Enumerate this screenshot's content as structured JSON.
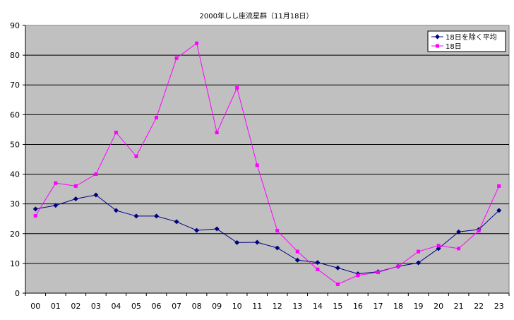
{
  "chart_data": {
    "type": "line",
    "title": "2000年しし座流星群（11月18日）",
    "xlabel": "",
    "ylabel": "",
    "categories": [
      "00",
      "01",
      "02",
      "03",
      "04",
      "05",
      "06",
      "07",
      "08",
      "09",
      "10",
      "11",
      "12",
      "13",
      "14",
      "15",
      "16",
      "17",
      "18",
      "19",
      "20",
      "21",
      "22",
      "23"
    ],
    "ylim": [
      0,
      90
    ],
    "yticks": [
      0,
      10,
      20,
      30,
      40,
      50,
      60,
      70,
      80,
      90
    ],
    "grid": true,
    "legend_position": "top-right",
    "series": [
      {
        "name": "18日を除く平均",
        "color": "#000080",
        "marker": "diamond",
        "values": [
          28.3,
          29.5,
          31.7,
          33.0,
          27.8,
          25.9,
          25.9,
          24.0,
          21.1,
          21.6,
          17.0,
          17.1,
          15.2,
          11.1,
          10.3,
          8.5,
          6.5,
          7.2,
          9.0,
          10.2,
          15.0,
          20.6,
          21.4,
          27.8
        ]
      },
      {
        "name": "18日",
        "color": "#ff00ff",
        "marker": "square",
        "values": [
          26,
          37,
          36,
          40,
          54,
          46,
          59,
          79,
          84,
          54,
          69,
          43,
          21,
          14,
          8,
          3,
          6,
          7,
          9,
          14,
          16,
          15,
          21,
          36
        ]
      }
    ],
    "colors": {
      "plot_background": "#c0c0c0",
      "grid": "#000000"
    }
  }
}
